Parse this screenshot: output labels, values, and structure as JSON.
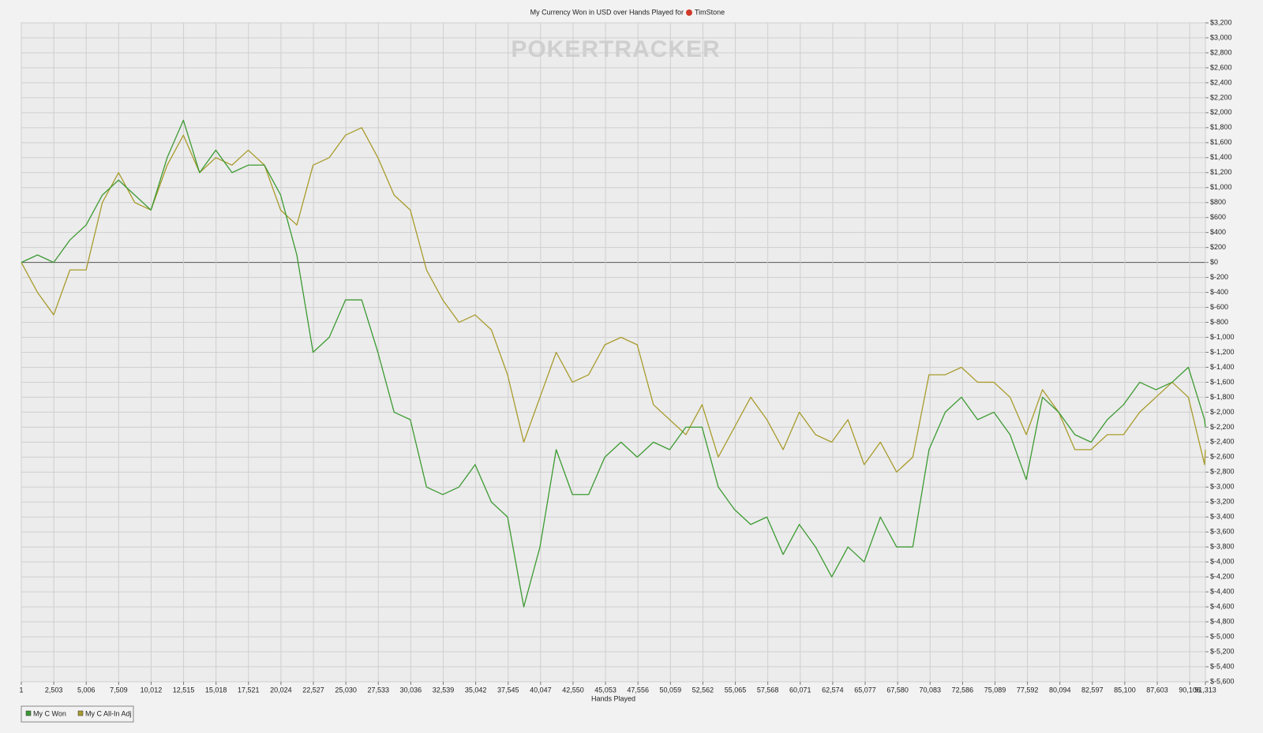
{
  "chart_data": {
    "type": "line",
    "title": "My Currency Won in USD over Hands Played for",
    "player": "TimStone",
    "watermark": "POKERTRACKER",
    "x_label": "Hands Played",
    "x": [
      1,
      1250,
      2500,
      3750,
      5000,
      6250,
      7500,
      8750,
      10000,
      11250,
      12500,
      13750,
      15000,
      16250,
      17500,
      18750,
      20000,
      21250,
      22500,
      23750,
      25000,
      26250,
      27500,
      28750,
      30000,
      31250,
      32500,
      33750,
      35000,
      36250,
      37500,
      38750,
      40000,
      41250,
      42500,
      43750,
      45000,
      46250,
      47500,
      48750,
      50000,
      51250,
      52500,
      53750,
      55000,
      56250,
      57500,
      58750,
      60000,
      61250,
      62500,
      63750,
      65000,
      66250,
      67500,
      68750,
      70000,
      71250,
      72500,
      73750,
      75000,
      76250,
      77500,
      78750,
      80000,
      81250,
      82500,
      83750,
      85000,
      86250,
      87500,
      88750,
      90000,
      91250,
      91313
    ],
    "series": [
      {
        "name": "My C Won",
        "color": "#3c9a32",
        "values": [
          0,
          100,
          0,
          300,
          500,
          900,
          1100,
          900,
          700,
          1400,
          1900,
          1200,
          1500,
          1200,
          1300,
          1300,
          900,
          100,
          -1200,
          -1000,
          -500,
          -500,
          -1200,
          -2000,
          -2100,
          -3000,
          -3100,
          -3000,
          -2700,
          -3200,
          -3400,
          -4600,
          -3800,
          -2500,
          -3100,
          -3100,
          -2600,
          -2400,
          -2600,
          -2400,
          -2500,
          -2200,
          -2200,
          -3000,
          -3300,
          -3500,
          -3400,
          -3900,
          -3500,
          -3800,
          -4200,
          -3800,
          -4000,
          -3400,
          -3800,
          -3800,
          -2500,
          -2000,
          -1800,
          -2100,
          -2000,
          -2300,
          -2900,
          -1800,
          -2000,
          -2300,
          -2400,
          -2100,
          -1900,
          -1600,
          -1700,
          -1600,
          -1400,
          -2100,
          -2200
        ]
      },
      {
        "name": "My C All-In Adj",
        "color": "#a89b2c",
        "values": [
          0,
          -400,
          -700,
          -100,
          -100,
          800,
          1200,
          800,
          700,
          1300,
          1700,
          1200,
          1400,
          1300,
          1500,
          1300,
          700,
          500,
          1300,
          1400,
          1700,
          1800,
          1400,
          900,
          700,
          -100,
          -500,
          -800,
          -700,
          -900,
          -1500,
          -2400,
          -1800,
          -1200,
          -1600,
          -1500,
          -1100,
          -1000,
          -1100,
          -1900,
          -2100,
          -2300,
          -1900,
          -2600,
          -2200,
          -1800,
          -2100,
          -2500,
          -2000,
          -2300,
          -2400,
          -2100,
          -2700,
          -2400,
          -2800,
          -2600,
          -1500,
          -1500,
          -1400,
          -1600,
          -1600,
          -1800,
          -2300,
          -1700,
          -2000,
          -2500,
          -2500,
          -2300,
          -2300,
          -2000,
          -1800,
          -1600,
          -1800,
          -2700,
          -2500
        ]
      }
    ],
    "xlim": [
      1,
      91313
    ],
    "xticks": [
      1,
      {
        "value": 2503,
        "label": "2,503"
      },
      {
        "value": 5006,
        "label": "5,006"
      },
      {
        "value": 7509,
        "label": "7,509"
      },
      {
        "value": 10012,
        "label": "10,012"
      },
      {
        "value": 12515,
        "label": "12,515"
      },
      {
        "value": 15018,
        "label": "15,018"
      },
      {
        "value": 17521,
        "label": "17,521"
      },
      {
        "value": 20024,
        "label": "20,024"
      },
      {
        "value": 22527,
        "label": "22,527"
      },
      {
        "value": 25030,
        "label": "25,030"
      },
      {
        "value": 27533,
        "label": "27,533"
      },
      {
        "value": 30036,
        "label": "30,036"
      },
      {
        "value": 32539,
        "label": "32,539"
      },
      {
        "value": 35042,
        "label": "35,042"
      },
      {
        "value": 37545,
        "label": "37,545"
      },
      {
        "value": 40047,
        "label": "40,047"
      },
      {
        "value": 42550,
        "label": "42,550"
      },
      {
        "value": 45053,
        "label": "45,053"
      },
      {
        "value": 47556,
        "label": "47,556"
      },
      {
        "value": 50059,
        "label": "50,059"
      },
      {
        "value": 52562,
        "label": "52,562"
      },
      {
        "value": 55065,
        "label": "55,065"
      },
      {
        "value": 57568,
        "label": "57,568"
      },
      {
        "value": 60071,
        "label": "60,071"
      },
      {
        "value": 62574,
        "label": "62,574"
      },
      {
        "value": 65077,
        "label": "65,077"
      },
      {
        "value": 67580,
        "label": "67,580"
      },
      {
        "value": 70083,
        "label": "70,083"
      },
      {
        "value": 72586,
        "label": "72,586"
      },
      {
        "value": 75089,
        "label": "75,089"
      },
      {
        "value": 77592,
        "label": "77,592"
      },
      {
        "value": 80094,
        "label": "80,094"
      },
      {
        "value": 82597,
        "label": "82,597"
      },
      {
        "value": 85100,
        "label": "85,100"
      },
      {
        "value": 87603,
        "label": "87,603"
      },
      {
        "value": 90106,
        "label": "90,106"
      },
      {
        "value": 91313,
        "label": "91,313"
      }
    ],
    "ylim": [
      -5600,
      3200
    ],
    "yticks": [
      {
        "value": -5600,
        "label": "$-5,600"
      },
      {
        "value": -5400,
        "label": "$-5,400"
      },
      {
        "value": -5200,
        "label": "$-5,200"
      },
      {
        "value": -5000,
        "label": "$-5,000"
      },
      {
        "value": -4800,
        "label": "$-4,800"
      },
      {
        "value": -4600,
        "label": "$-4,600"
      },
      {
        "value": -4400,
        "label": "$-4,400"
      },
      {
        "value": -4200,
        "label": "$-4,200"
      },
      {
        "value": -4000,
        "label": "$-4,000"
      },
      {
        "value": -3800,
        "label": "$-3,800"
      },
      {
        "value": -3600,
        "label": "$-3,600"
      },
      {
        "value": -3400,
        "label": "$-3,400"
      },
      {
        "value": -3200,
        "label": "$-3,200"
      },
      {
        "value": -3000,
        "label": "$-3,000"
      },
      {
        "value": -2800,
        "label": "$-2,800"
      },
      {
        "value": -2600,
        "label": "$-2,600"
      },
      {
        "value": -2400,
        "label": "$-2,400"
      },
      {
        "value": -2200,
        "label": "$-2,200"
      },
      {
        "value": -2000,
        "label": "$-2,000"
      },
      {
        "value": -1800,
        "label": "$-1,800"
      },
      {
        "value": -1600,
        "label": "$-1,600"
      },
      {
        "value": -1400,
        "label": "$-1,400"
      },
      {
        "value": -1200,
        "label": "$-1,200"
      },
      {
        "value": -1000,
        "label": "$-1,000"
      },
      {
        "value": -800,
        "label": "$-800"
      },
      {
        "value": -600,
        "label": "$-600"
      },
      {
        "value": -400,
        "label": "$-400"
      },
      {
        "value": -200,
        "label": "$-200"
      },
      {
        "value": 0,
        "label": "$0"
      },
      {
        "value": 200,
        "label": "$200"
      },
      {
        "value": 400,
        "label": "$400"
      },
      {
        "value": 600,
        "label": "$600"
      },
      {
        "value": 800,
        "label": "$800"
      },
      {
        "value": 1000,
        "label": "$1,000"
      },
      {
        "value": 1200,
        "label": "$1,200"
      },
      {
        "value": 1400,
        "label": "$1,400"
      },
      {
        "value": 1600,
        "label": "$1,600"
      },
      {
        "value": 1800,
        "label": "$1,800"
      },
      {
        "value": 2000,
        "label": "$2,000"
      },
      {
        "value": 2200,
        "label": "$2,200"
      },
      {
        "value": 2400,
        "label": "$2,400"
      },
      {
        "value": 2600,
        "label": "$2,600"
      },
      {
        "value": 2800,
        "label": "$2,800"
      },
      {
        "value": 3000,
        "label": "$3,000"
      },
      {
        "value": 3200,
        "label": "$3,200"
      }
    ],
    "grid": true
  }
}
